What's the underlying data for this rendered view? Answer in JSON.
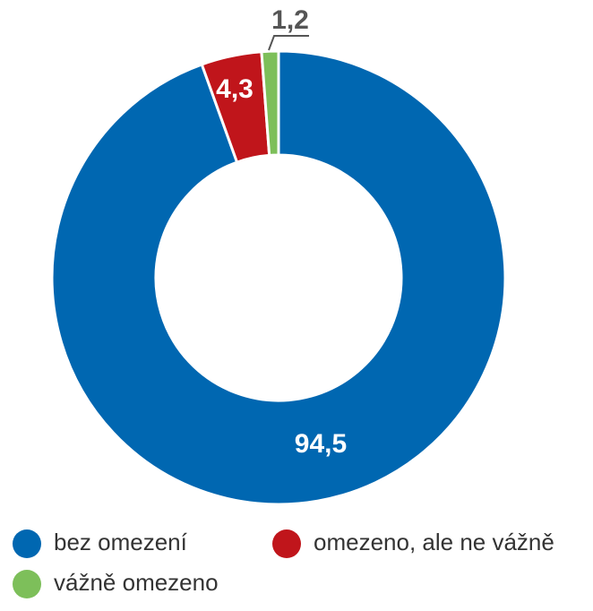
{
  "chart_data": {
    "type": "donut",
    "categories": [
      "bez omezení",
      "omezeno, ale ne vážně",
      "vážně omezeno"
    ],
    "values": [
      94.5,
      4.3,
      1.2
    ],
    "value_labels": [
      "94,5",
      "4,3",
      "1,2"
    ],
    "colors": [
      "#0067b1",
      "#c0151b",
      "#7dbf5a"
    ]
  }
}
